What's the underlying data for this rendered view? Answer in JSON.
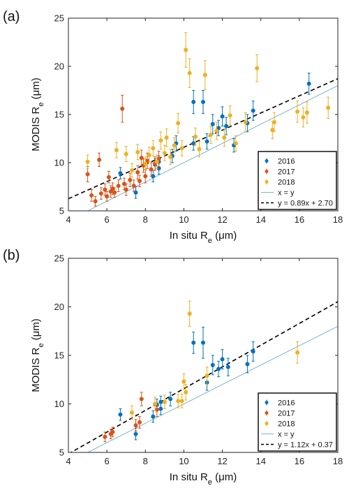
{
  "chart_data": [
    {
      "type": "scatter",
      "panel_label": "(a)",
      "xlabel": "In situ R",
      "xlabel_sub": "e",
      "xlabel_unit": " (μm)",
      "ylabel": "MODIS R",
      "ylabel_sub": "e",
      "ylabel_unit": " (μm)",
      "xlim": [
        4,
        18
      ],
      "ylim": [
        5,
        25
      ],
      "xticks": [
        "4",
        "6",
        "8",
        "10",
        "12",
        "14",
        "16",
        "18"
      ],
      "yticks": [
        "5",
        "10",
        "15",
        "20",
        "25"
      ],
      "grid": false,
      "legend_position": "bottom-right",
      "series": [
        {
          "name": "2016",
          "color": "#0072BD",
          "points": [
            {
              "x": 6.7,
              "y": 8.9,
              "err": 0.6
            },
            {
              "x": 7.5,
              "y": 6.9,
              "err": 0.6
            },
            {
              "x": 8.4,
              "y": 8.6,
              "err": 0.6
            },
            {
              "x": 8.5,
              "y": 9.8,
              "err": 0.6
            },
            {
              "x": 8.7,
              "y": 9.4,
              "err": 0.6
            },
            {
              "x": 8.7,
              "y": 10.1,
              "err": 0.6
            },
            {
              "x": 9.4,
              "y": 10.7,
              "err": 0.7
            },
            {
              "x": 9.6,
              "y": 12.0,
              "err": 0.8
            },
            {
              "x": 10.5,
              "y": 16.3,
              "err": 1.2
            },
            {
              "x": 10.5,
              "y": 12.0,
              "err": 0.7
            },
            {
              "x": 11.0,
              "y": 16.3,
              "err": 1.2
            },
            {
              "x": 11.2,
              "y": 12.2,
              "err": 0.8
            },
            {
              "x": 11.5,
              "y": 14.0,
              "err": 1.0
            },
            {
              "x": 11.8,
              "y": 13.6,
              "err": 0.8
            },
            {
              "x": 12.0,
              "y": 14.8,
              "err": 1.0
            },
            {
              "x": 12.2,
              "y": 13.8,
              "err": 0.9
            },
            {
              "x": 12.6,
              "y": 11.8,
              "err": 0.7
            },
            {
              "x": 13.3,
              "y": 14.1,
              "err": 0.9
            },
            {
              "x": 13.6,
              "y": 15.4,
              "err": 1.0
            },
            {
              "x": 16.5,
              "y": 18.2,
              "err": 1.1
            }
          ]
        },
        {
          "name": "2017",
          "color": "#D95319",
          "points": [
            {
              "x": 5.0,
              "y": 8.8,
              "err": 0.8
            },
            {
              "x": 5.2,
              "y": 6.6,
              "err": 0.6
            },
            {
              "x": 5.4,
              "y": 6.0,
              "err": 0.5
            },
            {
              "x": 5.6,
              "y": 10.3,
              "err": 0.7
            },
            {
              "x": 5.7,
              "y": 6.8,
              "err": 0.6
            },
            {
              "x": 5.9,
              "y": 7.2,
              "err": 0.6
            },
            {
              "x": 6.0,
              "y": 6.5,
              "err": 0.5
            },
            {
              "x": 6.1,
              "y": 8.5,
              "err": 0.6
            },
            {
              "x": 6.2,
              "y": 7.0,
              "err": 0.6
            },
            {
              "x": 6.3,
              "y": 7.3,
              "err": 0.6
            },
            {
              "x": 6.4,
              "y": 6.9,
              "err": 0.5
            },
            {
              "x": 6.6,
              "y": 7.6,
              "err": 0.6
            },
            {
              "x": 6.8,
              "y": 15.6,
              "err": 1.4
            },
            {
              "x": 6.9,
              "y": 7.8,
              "err": 0.6
            },
            {
              "x": 7.0,
              "y": 7.2,
              "err": 0.6
            },
            {
              "x": 7.2,
              "y": 8.2,
              "err": 0.7
            },
            {
              "x": 7.4,
              "y": 7.6,
              "err": 0.6
            },
            {
              "x": 7.6,
              "y": 9.0,
              "err": 0.7
            },
            {
              "x": 7.7,
              "y": 8.1,
              "err": 0.6
            },
            {
              "x": 7.8,
              "y": 10.5,
              "err": 0.8
            },
            {
              "x": 7.9,
              "y": 9.7,
              "err": 0.7
            },
            {
              "x": 8.0,
              "y": 8.6,
              "err": 0.7
            },
            {
              "x": 8.1,
              "y": 10.2,
              "err": 0.8
            },
            {
              "x": 8.3,
              "y": 9.3,
              "err": 0.7
            },
            {
              "x": 8.5,
              "y": 9.9,
              "err": 0.7
            },
            {
              "x": 8.7,
              "y": 10.4,
              "err": 0.8
            }
          ]
        },
        {
          "name": "2018",
          "color": "#EDB120",
          "points": [
            {
              "x": 5.0,
              "y": 10.1,
              "err": 0.7
            },
            {
              "x": 6.5,
              "y": 11.3,
              "err": 0.8
            },
            {
              "x": 7.0,
              "y": 10.9,
              "err": 0.8
            },
            {
              "x": 7.3,
              "y": 9.2,
              "err": 0.7
            },
            {
              "x": 7.6,
              "y": 11.1,
              "err": 0.8
            },
            {
              "x": 8.0,
              "y": 9.9,
              "err": 0.7
            },
            {
              "x": 8.2,
              "y": 10.8,
              "err": 0.8
            },
            {
              "x": 8.4,
              "y": 11.5,
              "err": 0.8
            },
            {
              "x": 8.6,
              "y": 10.1,
              "err": 0.7
            },
            {
              "x": 8.8,
              "y": 12.3,
              "err": 0.9
            },
            {
              "x": 9.0,
              "y": 11.0,
              "err": 0.8
            },
            {
              "x": 9.1,
              "y": 12.6,
              "err": 0.9
            },
            {
              "x": 9.3,
              "y": 10.6,
              "err": 0.8
            },
            {
              "x": 9.5,
              "y": 11.8,
              "err": 0.8
            },
            {
              "x": 9.7,
              "y": 14.1,
              "err": 1.0
            },
            {
              "x": 9.9,
              "y": 11.5,
              "err": 0.8
            },
            {
              "x": 10.1,
              "y": 21.7,
              "err": 1.8
            },
            {
              "x": 10.3,
              "y": 19.3,
              "err": 1.5
            },
            {
              "x": 10.6,
              "y": 12.7,
              "err": 0.9
            },
            {
              "x": 10.8,
              "y": 11.4,
              "err": 0.8
            },
            {
              "x": 11.1,
              "y": 19.1,
              "err": 1.5
            },
            {
              "x": 11.4,
              "y": 12.9,
              "err": 0.9
            },
            {
              "x": 11.7,
              "y": 13.3,
              "err": 0.9
            },
            {
              "x": 12.1,
              "y": 12.6,
              "err": 0.9
            },
            {
              "x": 12.4,
              "y": 14.9,
              "err": 1.0
            },
            {
              "x": 12.7,
              "y": 12.0,
              "err": 0.8
            },
            {
              "x": 13.2,
              "y": 14.2,
              "err": 1.0
            },
            {
              "x": 13.8,
              "y": 19.8,
              "err": 1.4
            },
            {
              "x": 14.6,
              "y": 13.4,
              "err": 0.9
            },
            {
              "x": 14.7,
              "y": 14.2,
              "err": 1.0
            },
            {
              "x": 15.9,
              "y": 15.3,
              "err": 1.1
            },
            {
              "x": 16.2,
              "y": 14.7,
              "err": 1.0
            },
            {
              "x": 16.4,
              "y": 15.2,
              "err": 1.1
            },
            {
              "x": 17.5,
              "y": 15.7,
              "err": 1.1
            }
          ]
        }
      ],
      "lines": [
        {
          "name": "x = y",
          "slope": 1,
          "intercept": 0,
          "color": "#7fb3c8",
          "style": "solid"
        },
        {
          "name": "y = 0.89x + 2.70",
          "slope": 0.89,
          "intercept": 2.7,
          "color": "#000000",
          "style": "dashed"
        }
      ]
    },
    {
      "type": "scatter",
      "panel_label": "(b)",
      "xlabel": "In situ R",
      "xlabel_sub": "e",
      "xlabel_unit": " (μm)",
      "ylabel": "MODIS R",
      "ylabel_sub": "e",
      "ylabel_unit": " (μm)",
      "xlim": [
        4,
        18
      ],
      "ylim": [
        5,
        25
      ],
      "xticks": [
        "4",
        "6",
        "8",
        "10",
        "12",
        "14",
        "16",
        "18"
      ],
      "yticks": [
        "5",
        "10",
        "15",
        "20",
        "25"
      ],
      "grid": false,
      "legend_position": "bottom-right",
      "series": [
        {
          "name": "2016",
          "color": "#0072BD",
          "points": [
            {
              "x": 6.7,
              "y": 8.9,
              "err": 0.6
            },
            {
              "x": 7.5,
              "y": 6.9,
              "err": 0.6
            },
            {
              "x": 8.4,
              "y": 8.7,
              "err": 0.6
            },
            {
              "x": 8.6,
              "y": 9.9,
              "err": 0.6
            },
            {
              "x": 8.8,
              "y": 9.5,
              "err": 0.6
            },
            {
              "x": 8.8,
              "y": 10.2,
              "err": 0.6
            },
            {
              "x": 9.3,
              "y": 10.5,
              "err": 0.7
            },
            {
              "x": 10.5,
              "y": 16.3,
              "err": 1.1
            },
            {
              "x": 11.0,
              "y": 16.3,
              "err": 1.6
            },
            {
              "x": 11.2,
              "y": 12.2,
              "err": 0.8
            },
            {
              "x": 11.5,
              "y": 14.0,
              "err": 1.0
            },
            {
              "x": 11.8,
              "y": 13.6,
              "err": 0.8
            },
            {
              "x": 12.0,
              "y": 14.6,
              "err": 1.0
            },
            {
              "x": 12.3,
              "y": 13.8,
              "err": 0.9
            },
            {
              "x": 13.3,
              "y": 14.1,
              "err": 0.9
            },
            {
              "x": 13.6,
              "y": 15.4,
              "err": 1.0
            }
          ]
        },
        {
          "name": "2017",
          "color": "#D95319",
          "points": [
            {
              "x": 5.9,
              "y": 6.6,
              "err": 0.5
            },
            {
              "x": 6.2,
              "y": 6.9,
              "err": 0.5
            },
            {
              "x": 6.3,
              "y": 7.1,
              "err": 0.5
            },
            {
              "x": 7.5,
              "y": 7.8,
              "err": 0.6
            },
            {
              "x": 7.7,
              "y": 8.1,
              "err": 0.6
            },
            {
              "x": 7.8,
              "y": 10.5,
              "err": 0.7
            },
            {
              "x": 8.6,
              "y": 9.4,
              "err": 0.7
            }
          ]
        },
        {
          "name": "2018",
          "color": "#EDB120",
          "points": [
            {
              "x": 7.3,
              "y": 9.1,
              "err": 0.7
            },
            {
              "x": 8.5,
              "y": 10.0,
              "err": 0.7
            },
            {
              "x": 9.0,
              "y": 10.2,
              "err": 0.7
            },
            {
              "x": 9.7,
              "y": 10.3,
              "err": 0.7
            },
            {
              "x": 9.9,
              "y": 10.3,
              "err": 0.7
            },
            {
              "x": 10.0,
              "y": 12.3,
              "err": 0.8
            },
            {
              "x": 10.1,
              "y": 11.2,
              "err": 0.8
            },
            {
              "x": 10.3,
              "y": 19.3,
              "err": 1.3
            },
            {
              "x": 11.2,
              "y": 12.9,
              "err": 0.9
            },
            {
              "x": 15.9,
              "y": 15.3,
              "err": 1.1
            }
          ]
        }
      ],
      "lines": [
        {
          "name": "x = y",
          "slope": 1,
          "intercept": 0,
          "color": "#7fb3c8",
          "style": "solid"
        },
        {
          "name": "y = 1.12x + 0.37",
          "slope": 1.12,
          "intercept": 0.37,
          "color": "#000000",
          "style": "dashed"
        }
      ]
    }
  ]
}
